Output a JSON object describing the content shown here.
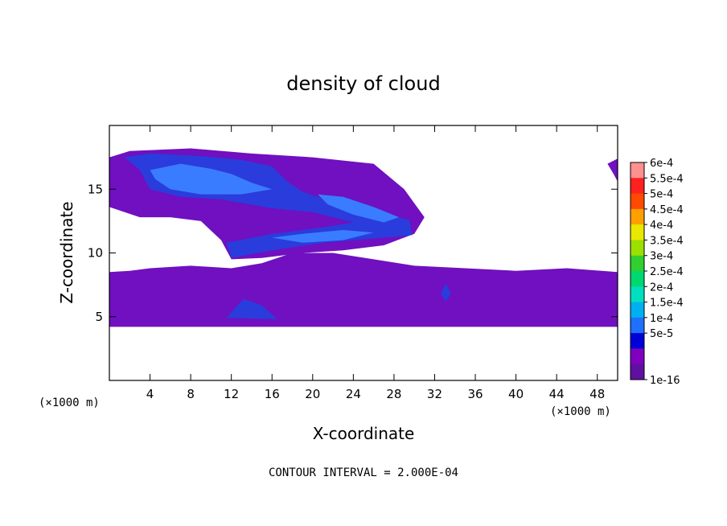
{
  "chart_data": {
    "type": "heatmap",
    "title": "density of cloud",
    "xlabel": "X-coordinate",
    "ylabel": "Z-coordinate",
    "x_unit_left": "(×1000 m)",
    "x_unit_right": "(×1000 m)",
    "xlim": [
      0,
      50
    ],
    "ylim": [
      0,
      20
    ],
    "x_ticks": [
      4,
      8,
      12,
      16,
      20,
      24,
      28,
      32,
      36,
      40,
      44,
      48
    ],
    "x_tick_labels": [
      "4",
      "8",
      "12",
      "16",
      "20",
      "24",
      "28",
      "32",
      "36",
      "40",
      "44",
      "48"
    ],
    "y_ticks": [
      5,
      10,
      15
    ],
    "y_tick_labels": [
      "5",
      "10",
      "15"
    ],
    "footnote": "CONTOUR INTERVAL = 2.000E-04",
    "colorbar": {
      "labels": [
        "6e-4",
        "5.5e-4",
        "5e-4",
        "4.5e-4",
        "4e-4",
        "3.5e-4",
        "3e-4",
        "2.5e-4",
        "2e-4",
        "1.5e-4",
        "1e-4",
        "5e-5",
        "1e-16"
      ],
      "colors": [
        "#ff9090",
        "#ff2020",
        "#ff4a00",
        "#ffa000",
        "#e8e800",
        "#9ce000",
        "#30d030",
        "#00d870",
        "#00e0c0",
        "#00b0f0",
        "#2070ff",
        "#0000d8",
        "#8000c0",
        "#6010a0"
      ]
    },
    "regions": [
      {
        "level": "1e-16",
        "color": "#7010c0",
        "points": [
          [
            0,
            4.2
          ],
          [
            50,
            4.2
          ],
          [
            50,
            8.5
          ],
          [
            45,
            8.8
          ],
          [
            40,
            8.6
          ],
          [
            35,
            8.8
          ],
          [
            30,
            9.0
          ],
          [
            26,
            9.5
          ],
          [
            22,
            10.0
          ],
          [
            18,
            10.0
          ],
          [
            15,
            9.2
          ],
          [
            12,
            8.8
          ],
          [
            8,
            9.0
          ],
          [
            4,
            8.8
          ],
          [
            2,
            8.6
          ],
          [
            0,
            8.5
          ]
        ]
      },
      {
        "level": "1e-16",
        "color": "#7010c0",
        "points": [
          [
            0,
            17.5
          ],
          [
            2,
            18.0
          ],
          [
            8,
            18.2
          ],
          [
            14,
            17.8
          ],
          [
            20,
            17.5
          ],
          [
            26,
            17.0
          ],
          [
            29,
            15.0
          ],
          [
            31,
            12.8
          ],
          [
            30,
            11.5
          ],
          [
            27,
            10.6
          ],
          [
            23,
            10.2
          ],
          [
            19,
            10.0
          ],
          [
            15,
            9.6
          ],
          [
            12,
            9.5
          ],
          [
            11,
            11.0
          ],
          [
            9,
            12.5
          ],
          [
            6,
            12.8
          ],
          [
            3,
            12.8
          ],
          [
            0,
            13.6
          ]
        ]
      },
      {
        "level": "1e-16",
        "color": "#7010c0",
        "points": [
          [
            49,
            17.0
          ],
          [
            50,
            17.4
          ],
          [
            50,
            15.6
          ],
          [
            49.6,
            16.2
          ]
        ]
      },
      {
        "level": "5e-5",
        "color": "#2a3cdc",
        "points": [
          [
            1.5,
            17.5
          ],
          [
            4,
            17.8
          ],
          [
            9,
            17.6
          ],
          [
            13,
            17.3
          ],
          [
            16,
            16.8
          ],
          [
            17.5,
            15.6
          ],
          [
            19,
            14.8
          ],
          [
            22,
            14.0
          ],
          [
            26,
            13.2
          ],
          [
            29.5,
            12.6
          ],
          [
            29.8,
            11.4
          ],
          [
            27,
            11.2
          ],
          [
            24,
            11.0
          ],
          [
            21,
            10.8
          ],
          [
            16,
            10.2
          ],
          [
            12,
            9.6
          ],
          [
            11.5,
            10.8
          ],
          [
            16,
            11.5
          ],
          [
            21,
            12.0
          ],
          [
            24,
            12.4
          ],
          [
            20,
            13.2
          ],
          [
            16,
            13.5
          ],
          [
            11,
            14.2
          ],
          [
            7,
            14.4
          ],
          [
            4,
            15.0
          ],
          [
            3,
            16.5
          ]
        ]
      },
      {
        "level": "1e-4",
        "color": "#3a7cff",
        "points": [
          [
            4,
            16.5
          ],
          [
            7,
            17.0
          ],
          [
            10,
            16.6
          ],
          [
            12,
            16.2
          ],
          [
            14,
            15.5
          ],
          [
            16,
            15.0
          ],
          [
            13,
            14.6
          ],
          [
            9,
            14.6
          ],
          [
            6,
            15.0
          ],
          [
            4.5,
            15.8
          ]
        ]
      },
      {
        "level": "1e-4",
        "color": "#3a7cff",
        "points": [
          [
            20.5,
            14.6
          ],
          [
            23,
            14.4
          ],
          [
            26,
            13.6
          ],
          [
            28.5,
            12.8
          ],
          [
            27,
            12.4
          ],
          [
            24,
            13.0
          ],
          [
            21.5,
            13.8
          ]
        ]
      },
      {
        "level": "1e-4",
        "color": "#3a7cff",
        "points": [
          [
            16,
            11.2
          ],
          [
            19,
            11.5
          ],
          [
            23,
            11.8
          ],
          [
            26,
            11.6
          ],
          [
            23,
            11.0
          ],
          [
            19,
            10.8
          ]
        ]
      },
      {
        "level": "5e-5",
        "color": "#2a3cdc",
        "points": [
          [
            11.5,
            4.9
          ],
          [
            13.2,
            6.4
          ],
          [
            15,
            5.9
          ],
          [
            16.5,
            4.8
          ]
        ]
      },
      {
        "level": "5e-5",
        "color": "#2a3cdc",
        "points": [
          [
            32.6,
            6.8
          ],
          [
            33.1,
            7.6
          ],
          [
            33.6,
            6.8
          ],
          [
            33.1,
            6.2
          ]
        ]
      }
    ]
  }
}
